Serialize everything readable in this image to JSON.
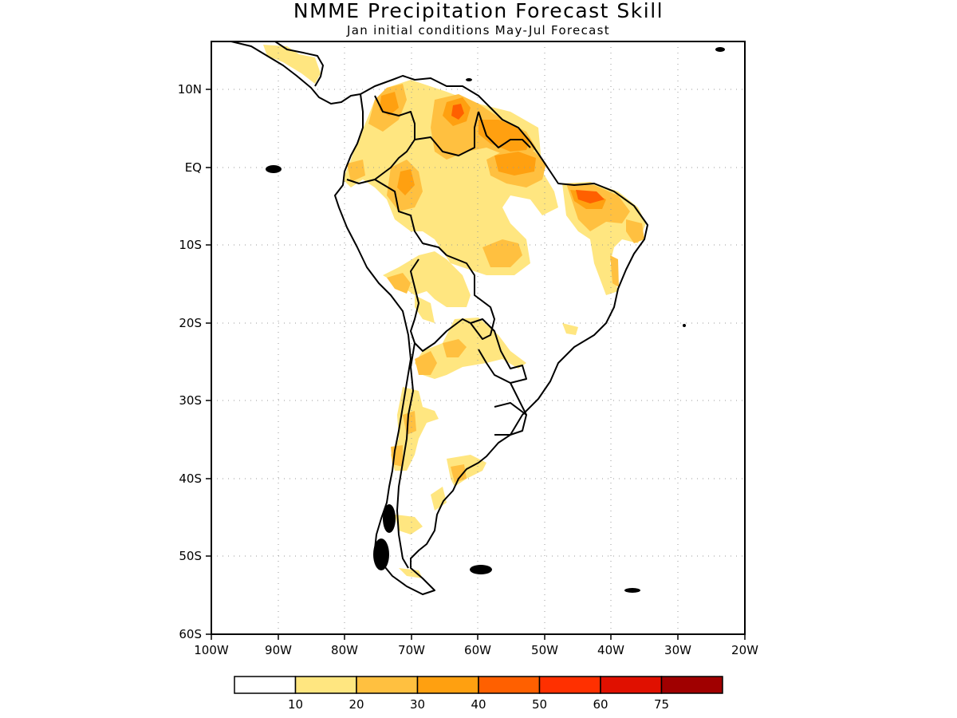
{
  "title": "NMME Precipitation Forecast Skill",
  "subtitle": "Jan initial conditions  May-Jul Forecast",
  "map": {
    "region": "South America",
    "lon_range": [
      -100,
      -20
    ],
    "lat_range": [
      -60,
      15
    ],
    "gridlines": "dotted",
    "lat_labels": [
      "10N",
      "EQ",
      "10S",
      "20S",
      "30S",
      "40S",
      "50S",
      "60S"
    ],
    "lon_labels": [
      "100W",
      "90W",
      "80W",
      "70W",
      "60W",
      "50W",
      "40W",
      "30W",
      "20W"
    ]
  },
  "legend": {
    "labels": [
      "10",
      "20",
      "30",
      "40",
      "50",
      "60",
      "75"
    ],
    "colors": [
      "#ffffff",
      "#ffe680",
      "#ffc040",
      "#ffa010",
      "#ff6000",
      "#ff3000",
      "#e01000",
      "#a00000"
    ]
  },
  "skill_regions": [
    {
      "level": 1,
      "lon": -76,
      "lat": 4.5
    },
    {
      "level": 1,
      "lon": -65,
      "lat": 5.5
    },
    {
      "level": 2,
      "lon": -63,
      "lat": 7
    },
    {
      "level": 3,
      "lon": -63,
      "lat": 7.3
    },
    {
      "level": 2,
      "lon": -55,
      "lat": 4.2
    },
    {
      "level": 2,
      "lon": -56,
      "lat": 0
    },
    {
      "level": 3,
      "lon": -56,
      "lat": 0.3
    },
    {
      "level": 2,
      "lon": -71,
      "lat": -2.5
    },
    {
      "level": 1,
      "lon": -57,
      "lat": -10.5
    },
    {
      "level": 2,
      "lon": -43,
      "lat": -5
    },
    {
      "level": 3,
      "lon": -43,
      "lat": -4
    },
    {
      "level": 4,
      "lon": -44,
      "lat": -3.7
    },
    {
      "level": 1,
      "lon": -72,
      "lat": -15.5
    },
    {
      "level": 1,
      "lon": -64,
      "lat": -24
    },
    {
      "level": 1,
      "lon": -69,
      "lat": -33
    },
    {
      "level": 1,
      "lon": -66,
      "lat": -38
    }
  ]
}
